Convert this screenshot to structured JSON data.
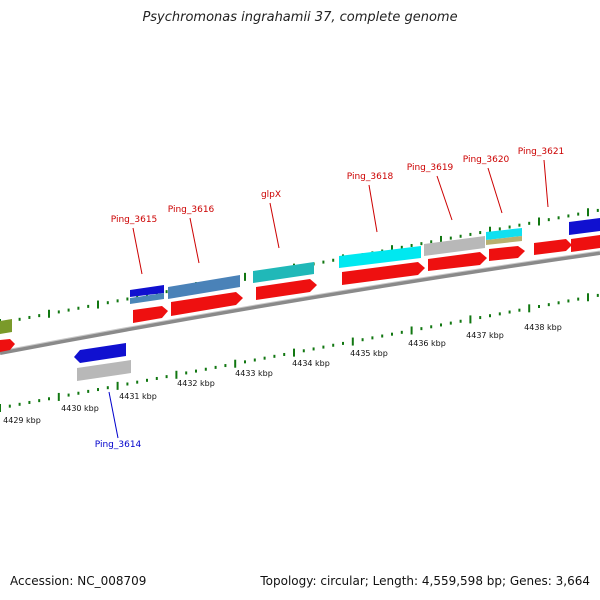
{
  "title": "Psychromonas ingrahamii 37, complete genome",
  "accession": "Accession: NC_008709",
  "topology": "Topology: circular; Length: 4,559,598 bp; Genes: 3,664",
  "colors": {
    "label_top": "#cc0000",
    "label_bottom": "#0000cc",
    "tick": "#117711",
    "backbone": "#888888"
  },
  "labels": [
    {
      "text": "Ping_3614",
      "strand": "bottom"
    },
    {
      "text": "Ping_3615",
      "strand": "top"
    },
    {
      "text": "Ping_3616",
      "strand": "top"
    },
    {
      "text": "glpX",
      "strand": "top"
    },
    {
      "text": "Ping_3618",
      "strand": "top"
    },
    {
      "text": "Ping_3619",
      "strand": "top"
    },
    {
      "text": "Ping_3620",
      "strand": "top"
    },
    {
      "text": "Ping_3621",
      "strand": "top"
    }
  ],
  "kbp_ticks": [
    "4429 kbp",
    "4430 kbp",
    "4431 kbp",
    "4432 kbp",
    "4433 kbp",
    "4434 kbp",
    "4435 kbp",
    "4436 kbp",
    "4437 kbp",
    "4438 kbp"
  ]
}
